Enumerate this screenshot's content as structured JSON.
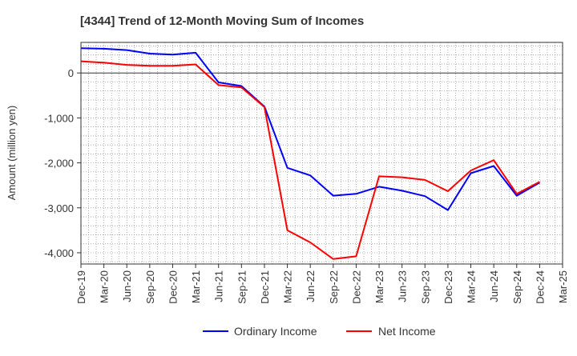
{
  "chart_data": {
    "type": "line",
    "title": "[4344]  Trend of 12-Month Moving Sum of Incomes",
    "xlabel": "",
    "ylabel": "Amount (million yen)",
    "ylim": [
      -4250,
      680
    ],
    "yticks": [
      0,
      -1000,
      -2000,
      -3000,
      -4000
    ],
    "ytick_labels": [
      "0",
      "-1,000",
      "-2,000",
      "-3,000",
      "-4,000"
    ],
    "categories": [
      "Dec-19",
      "Mar-20",
      "Jun-20",
      "Sep-20",
      "Dec-20",
      "Mar-21",
      "Jun-21",
      "Sep-21",
      "Dec-21",
      "Mar-22",
      "Jun-22",
      "Sep-22",
      "Dec-22",
      "Mar-23",
      "Jun-23",
      "Sep-23",
      "Dec-23",
      "Mar-24",
      "Jun-24",
      "Sep-24",
      "Dec-24",
      "Mar-25"
    ],
    "grid": true,
    "legend_position": "bottom-center",
    "series": [
      {
        "name": "Ordinary Income",
        "color": "#0000ff",
        "values": [
          550,
          540,
          510,
          430,
          410,
          450,
          -210,
          -290,
          -750,
          -2110,
          -2280,
          -2730,
          -2690,
          -2530,
          -2620,
          -2740,
          -3050,
          -2230,
          -2070,
          -2730,
          -2440,
          null
        ]
      },
      {
        "name": "Net Income",
        "color": "#ff0000",
        "values": [
          260,
          230,
          180,
          160,
          160,
          190,
          -270,
          -320,
          -760,
          -3500,
          -3770,
          -4140,
          -4080,
          -2300,
          -2320,
          -2380,
          -2630,
          -2170,
          -1940,
          -2690,
          -2420,
          null
        ]
      }
    ]
  }
}
